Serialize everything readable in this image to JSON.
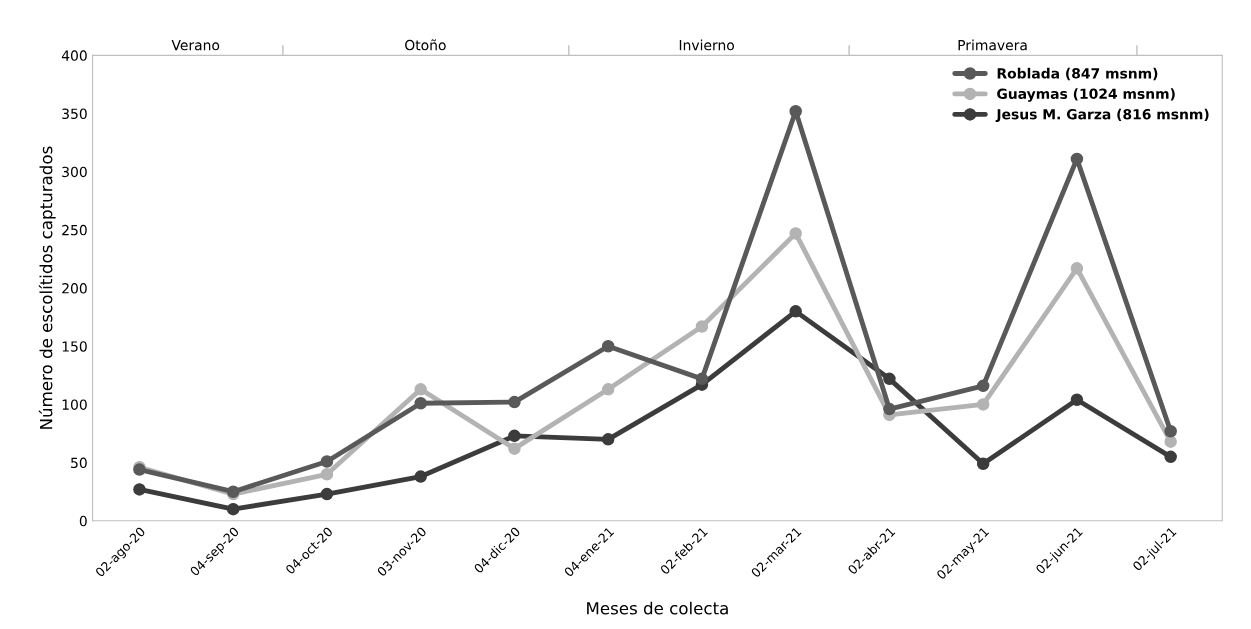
{
  "chart_data": {
    "type": "line",
    "xlabel": "Meses de colecta",
    "ylabel": "Número de escolítidos capturados",
    "categories": [
      "02-ago-20",
      "04-sep-20",
      "04-oct-20",
      "03-nov-20",
      "04-dic-20",
      "04-ene-21",
      "02-feb-21",
      "02-mar-21",
      "02-abr-21",
      "02-may-21",
      "02-jun-21",
      "02-jul-21"
    ],
    "series": [
      {
        "name": "Roblada (847 msnm)",
        "color": "#595959",
        "values": [
          44,
          25,
          51,
          101,
          102,
          150,
          122,
          352,
          96,
          116,
          311,
          77
        ]
      },
      {
        "name": "Guaymas (1024 msnm)",
        "color": "#b3b3b3",
        "values": [
          46,
          23,
          40,
          113,
          62,
          113,
          167,
          247,
          91,
          100,
          217,
          68
        ]
      },
      {
        "name": "Jesus M. Garza (816 msnm)",
        "color": "#3c3c3c",
        "values": [
          27,
          10,
          23,
          38,
          73,
          70,
          117,
          180,
          122,
          49,
          104,
          55
        ]
      }
    ],
    "annotations": [
      "Verano",
      "Otoño",
      "Invierno",
      "Primavera"
    ],
    "ylim": [
      0,
      400
    ],
    "yticks": [
      0,
      50,
      100,
      150,
      200,
      250,
      300,
      350,
      400
    ],
    "grid": false,
    "legend": "top right",
    "marker": "circle",
    "line_style": "solid"
  }
}
